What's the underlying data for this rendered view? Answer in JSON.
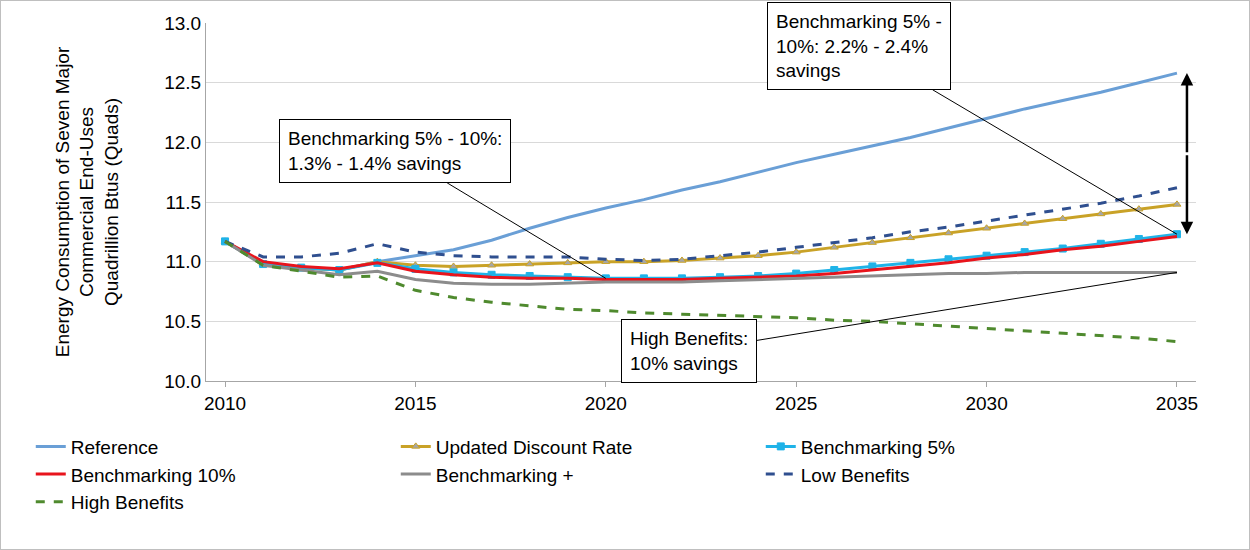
{
  "chart_data": {
    "type": "line",
    "y_label": [
      "Energy Consumption of Seven Major",
      "Commercial End-Uses",
      "Quadrillion Btus (Quads)"
    ],
    "annotations": [
      [
        "Benchmarking 5% - 10%:",
        "1.3% - 1.4% savings"
      ],
      [
        "Benchmarking 5% -",
        "10%: 2.2% - 2.4%",
        "savings"
      ],
      [
        "High Benefits:",
        "10% savings"
      ]
    ],
    "x": [
      2010,
      2011,
      2012,
      2013,
      2014,
      2015,
      2016,
      2017,
      2018,
      2019,
      2020,
      2021,
      2022,
      2023,
      2024,
      2025,
      2026,
      2027,
      2028,
      2029,
      2030,
      2031,
      2032,
      2033,
      2034,
      2035
    ],
    "xlim": [
      2009.5,
      2035.5
    ],
    "xticks": [
      2010,
      2015,
      2020,
      2025,
      2030,
      2035
    ],
    "ylim": [
      10,
      13
    ],
    "yticks": [
      {
        "value": 10,
        "label": "10.0"
      },
      10.5,
      {
        "value": 11,
        "label": "11.0"
      },
      11.5,
      {
        "value": 12,
        "label": "12.0"
      },
      12.5,
      {
        "value": 13,
        "label": "13.0"
      }
    ],
    "grid": true,
    "legend": "bottom",
    "series": [
      {
        "name": "Reference",
        "color": "#6a9fd6",
        "line_style": "solid",
        "values": [
          11.17,
          10.98,
          10.95,
          10.93,
          11.0,
          11.05,
          11.1,
          11.18,
          11.28,
          11.37,
          11.45,
          11.52,
          11.6,
          11.67,
          11.75,
          11.83,
          11.9,
          11.97,
          12.04,
          12.12,
          12.2,
          12.28,
          12.35,
          12.42,
          12.5,
          12.58
        ]
      },
      {
        "name": "Updated Discount Rate",
        "color": "#c9a227",
        "line_style": "solid",
        "marker": "triangle-up",
        "values": [
          11.17,
          10.98,
          10.95,
          10.93,
          11.0,
          10.97,
          10.96,
          10.97,
          10.98,
          10.99,
          11.0,
          11.0,
          11.01,
          11.03,
          11.05,
          11.08,
          11.12,
          11.16,
          11.2,
          11.24,
          11.28,
          11.32,
          11.36,
          11.4,
          11.44,
          11.48
        ]
      },
      {
        "name": "Benchmarking 5%",
        "color": "#1fb3e8",
        "line_style": "solid",
        "marker": "square",
        "values": [
          11.17,
          10.98,
          10.95,
          10.93,
          10.99,
          10.94,
          10.91,
          10.89,
          10.88,
          10.87,
          10.86,
          10.86,
          10.86,
          10.87,
          10.88,
          10.9,
          10.93,
          10.96,
          10.99,
          11.02,
          11.05,
          11.08,
          11.11,
          11.15,
          11.19,
          11.23
        ]
      },
      {
        "name": "Benchmarking 10%",
        "color": "#e8141c",
        "line_style": "solid",
        "values": [
          11.17,
          11.0,
          10.96,
          10.94,
          10.99,
          10.92,
          10.89,
          10.87,
          10.86,
          10.86,
          10.85,
          10.85,
          10.85,
          10.86,
          10.87,
          10.88,
          10.9,
          10.93,
          10.96,
          10.99,
          11.03,
          11.06,
          11.1,
          11.13,
          11.17,
          11.21
        ]
      },
      {
        "name": "Benchmarking +",
        "color": "#8c8c8c",
        "line_style": "solid",
        "values": [
          11.17,
          10.97,
          10.93,
          10.89,
          10.92,
          10.85,
          10.82,
          10.81,
          10.81,
          10.82,
          10.83,
          10.83,
          10.83,
          10.84,
          10.85,
          10.86,
          10.87,
          10.88,
          10.89,
          10.9,
          10.9,
          10.91,
          10.91,
          10.91,
          10.91,
          10.91
        ]
      },
      {
        "name": "Low Benefits",
        "color": "#2f4f8f",
        "line_style": "dash",
        "values": [
          11.17,
          11.04,
          11.04,
          11.07,
          11.15,
          11.08,
          11.05,
          11.04,
          11.04,
          11.04,
          11.02,
          11.01,
          11.02,
          11.05,
          11.08,
          11.12,
          11.16,
          11.2,
          11.25,
          11.29,
          11.34,
          11.39,
          11.44,
          11.49,
          11.55,
          11.62
        ]
      },
      {
        "name": "High Benefits",
        "color": "#4f8a2e",
        "line_style": "dash",
        "values": [
          11.17,
          10.97,
          10.92,
          10.87,
          10.88,
          10.76,
          10.7,
          10.66,
          10.63,
          10.6,
          10.59,
          10.57,
          10.56,
          10.55,
          10.54,
          10.53,
          10.51,
          10.5,
          10.48,
          10.46,
          10.44,
          10.42,
          10.4,
          10.38,
          10.36,
          10.33
        ]
      }
    ]
  }
}
